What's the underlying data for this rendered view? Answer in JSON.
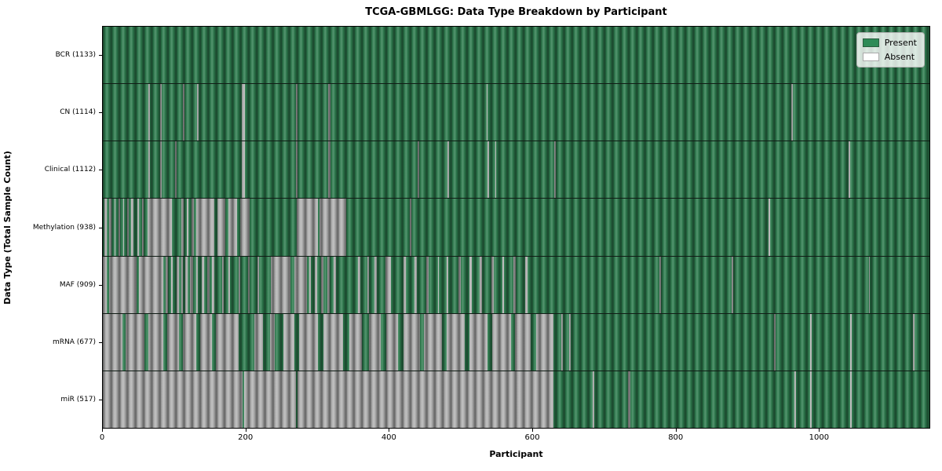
{
  "chart_data": {
    "type": "heatmap",
    "title": "TCGA-GBMLGG: Data Type Breakdown by Participant",
    "xlabel": "Participant",
    "ylabel": "Data Type (Total Sample Count)",
    "x_ticks": [
      0,
      200,
      400,
      600,
      800,
      1000
    ],
    "x_max": 1155,
    "grid": false,
    "legend_position": "upper right",
    "colors": {
      "present": "#2e8b57",
      "present_render": "#2e7d4f",
      "absent_render": "#b3b3b3",
      "absent_legend": "#ffffff"
    },
    "legend": [
      {
        "label": "Present",
        "color": "#2e8b57"
      },
      {
        "label": "Absent",
        "color": "#ffffff"
      }
    ],
    "rows": [
      {
        "name": "BCR",
        "label": "BCR (1133)",
        "total": 1133,
        "absent_intervals": []
      },
      {
        "name": "CN",
        "label": "CN (1114)",
        "total": 1114,
        "absent_intervals": [
          [
            64,
            66
          ],
          [
            80,
            82
          ],
          [
            112,
            114
          ],
          [
            132,
            134
          ],
          [
            194,
            198
          ],
          [
            270,
            272
          ],
          [
            315,
            318
          ],
          [
            536,
            538
          ],
          [
            962,
            964
          ]
        ]
      },
      {
        "name": "Clinical",
        "label": "Clinical (1112)",
        "total": 1112,
        "absent_intervals": [
          [
            64,
            66
          ],
          [
            80,
            82
          ],
          [
            101,
            103
          ],
          [
            194,
            198
          ],
          [
            270,
            272
          ],
          [
            315,
            318
          ],
          [
            440,
            442
          ],
          [
            482,
            484
          ],
          [
            538,
            540
          ],
          [
            548,
            550
          ],
          [
            631,
            633
          ],
          [
            1042,
            1044
          ]
        ]
      },
      {
        "name": "Methylation",
        "label": "Methylation (938)",
        "total": 938,
        "absent_intervals": [
          [
            2,
            5
          ],
          [
            9,
            12
          ],
          [
            16,
            18
          ],
          [
            22,
            24
          ],
          [
            28,
            30
          ],
          [
            34,
            36
          ],
          [
            40,
            43
          ],
          [
            48,
            50
          ],
          [
            55,
            57
          ],
          [
            62,
            96
          ],
          [
            110,
            113
          ],
          [
            117,
            120
          ],
          [
            124,
            127
          ],
          [
            130,
            156
          ],
          [
            160,
            171
          ],
          [
            175,
            188
          ],
          [
            192,
            205
          ],
          [
            271,
            300
          ],
          [
            303,
            340
          ],
          [
            429,
            431
          ],
          [
            930,
            932
          ]
        ]
      },
      {
        "name": "MAF",
        "label": "MAF (909)",
        "total": 909,
        "absent_intervals": [
          [
            0,
            5
          ],
          [
            9,
            47
          ],
          [
            50,
            85
          ],
          [
            88,
            91
          ],
          [
            95,
            98
          ],
          [
            103,
            106
          ],
          [
            110,
            112
          ],
          [
            115,
            118
          ],
          [
            122,
            126
          ],
          [
            130,
            133
          ],
          [
            138,
            141
          ],
          [
            146,
            149
          ],
          [
            153,
            156
          ],
          [
            167,
            169
          ],
          [
            176,
            178
          ],
          [
            190,
            192
          ],
          [
            203,
            205
          ],
          [
            216,
            218
          ],
          [
            235,
            262
          ],
          [
            268,
            285
          ],
          [
            288,
            291
          ],
          [
            296,
            299
          ],
          [
            305,
            308
          ],
          [
            314,
            317
          ],
          [
            323,
            326
          ],
          [
            356,
            360
          ],
          [
            370,
            372
          ],
          [
            380,
            383
          ],
          [
            395,
            403
          ],
          [
            420,
            423
          ],
          [
            436,
            439
          ],
          [
            452,
            455
          ],
          [
            468,
            470
          ],
          [
            480,
            483
          ],
          [
            497,
            500
          ],
          [
            512,
            515
          ],
          [
            527,
            530
          ],
          [
            543,
            546
          ],
          [
            558,
            561
          ],
          [
            574,
            577
          ],
          [
            590,
            593
          ],
          [
            778,
            780
          ],
          [
            879,
            881
          ],
          [
            1070,
            1072
          ]
        ]
      },
      {
        "name": "mRNA",
        "label": "mRNA (677)",
        "total": 677,
        "absent_intervals": [
          [
            0,
            27
          ],
          [
            32,
            58
          ],
          [
            64,
            84
          ],
          [
            90,
            106
          ],
          [
            112,
            130
          ],
          [
            136,
            152
          ],
          [
            158,
            190
          ],
          [
            212,
            224
          ],
          [
            234,
            240
          ],
          [
            252,
            268
          ],
          [
            274,
            300
          ],
          [
            308,
            336
          ],
          [
            344,
            362
          ],
          [
            372,
            388
          ],
          [
            396,
            412
          ],
          [
            420,
            443
          ],
          [
            449,
            474
          ],
          [
            480,
            506
          ],
          [
            512,
            538
          ],
          [
            544,
            570
          ],
          [
            576,
            598
          ],
          [
            606,
            630
          ],
          [
            641,
            643
          ],
          [
            652,
            654
          ],
          [
            938,
            940
          ],
          [
            988,
            990
          ],
          [
            1044,
            1046
          ],
          [
            1132,
            1134
          ]
        ]
      },
      {
        "name": "miR",
        "label": "miR (517)",
        "total": 517,
        "absent_intervals": [
          [
            0,
            195
          ],
          [
            197,
            270
          ],
          [
            272,
            630
          ],
          [
            684,
            687
          ],
          [
            734,
            737
          ],
          [
            966,
            968
          ],
          [
            988,
            990
          ],
          [
            1044,
            1046
          ]
        ]
      }
    ]
  }
}
